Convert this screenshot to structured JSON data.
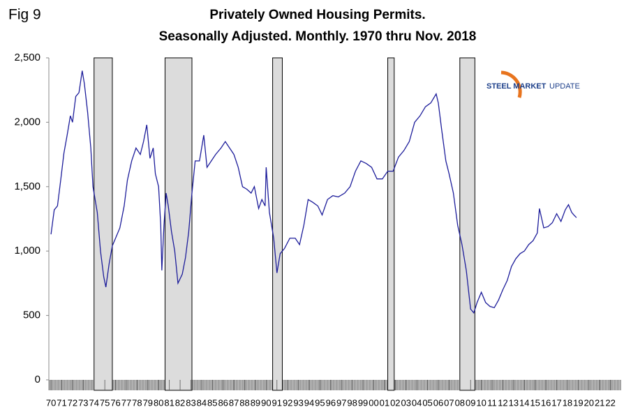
{
  "fig_label": "Fig 9",
  "logo": {
    "bold": "STEEL MARKET",
    "light": "UPDATE"
  },
  "chart_data": {
    "type": "line",
    "title": "Privately Owned Housing Permits.",
    "subtitle": "Seasonally Adjusted. Monthly. 1970 thru Nov. 2018",
    "x": [
      1970.0,
      1970.3,
      1970.6,
      1970.9,
      1971.2,
      1971.5,
      1971.8,
      1972.0,
      1972.3,
      1972.6,
      1972.9,
      1973.1,
      1973.4,
      1973.7,
      1973.9,
      1974.1,
      1974.3,
      1974.6,
      1974.9,
      1975.1,
      1975.4,
      1975.7,
      1976.0,
      1976.4,
      1976.8,
      1977.1,
      1977.5,
      1977.9,
      1978.3,
      1978.6,
      1978.9,
      1979.2,
      1979.5,
      1979.7,
      1980.0,
      1980.2,
      1980.3,
      1980.5,
      1980.7,
      1980.9,
      1981.2,
      1981.5,
      1981.8,
      1982.2,
      1982.5,
      1982.8,
      1983.1,
      1983.4,
      1983.8,
      1984.2,
      1984.5,
      1984.9,
      1985.3,
      1985.8,
      1986.2,
      1986.6,
      1987.0,
      1987.4,
      1987.8,
      1988.2,
      1988.6,
      1988.9,
      1989.3,
      1989.6,
      1989.9,
      1990.0,
      1990.3,
      1990.7,
      1991.0,
      1991.3,
      1991.7,
      1992.2,
      1992.7,
      1993.1,
      1993.5,
      1993.9,
      1994.3,
      1994.8,
      1995.2,
      1995.7,
      1996.2,
      1996.7,
      1997.3,
      1997.8,
      1998.3,
      1998.8,
      1999.3,
      1999.8,
      2000.3,
      2000.8,
      2001.3,
      2001.8,
      2002.3,
      2002.8,
      2003.3,
      2003.8,
      2004.3,
      2004.8,
      2005.3,
      2005.8,
      2006.0,
      2006.3,
      2006.7,
      2007.0,
      2007.4,
      2007.8,
      2008.2,
      2008.6,
      2009.0,
      2009.3,
      2009.6,
      2010.0,
      2010.4,
      2010.8,
      2011.2,
      2011.6,
      2012.0,
      2012.4,
      2012.8,
      2013.2,
      2013.6,
      2014.0,
      2014.4,
      2014.8,
      2015.2,
      2015.4,
      2015.8,
      2016.2,
      2016.6,
      2017.0,
      2017.4,
      2017.8,
      2018.1,
      2018.4,
      2018.6,
      2018.84
    ],
    "series": [
      {
        "color": "#1c1c9a",
        "values": [
          1130,
          1320,
          1350,
          1550,
          1760,
          1900,
          2050,
          2000,
          2200,
          2230,
          2400,
          2300,
          2080,
          1800,
          1500,
          1400,
          1300,
          1000,
          800,
          720,
          900,
          1040,
          1100,
          1180,
          1350,
          1550,
          1700,
          1800,
          1750,
          1850,
          1980,
          1720,
          1800,
          1600,
          1500,
          1200,
          850,
          1200,
          1450,
          1350,
          1150,
          1000,
          750,
          820,
          950,
          1150,
          1450,
          1700,
          1700,
          1900,
          1650,
          1700,
          1750,
          1800,
          1850,
          1800,
          1750,
          1650,
          1500,
          1480,
          1450,
          1500,
          1330,
          1400,
          1350,
          1650,
          1300,
          1100,
          830,
          980,
          1020,
          1100,
          1100,
          1050,
          1200,
          1400,
          1380,
          1350,
          1280,
          1400,
          1430,
          1420,
          1450,
          1500,
          1620,
          1700,
          1680,
          1650,
          1560,
          1560,
          1620,
          1620,
          1730,
          1780,
          1850,
          2000,
          2050,
          2120,
          2150,
          2220,
          2150,
          1950,
          1700,
          1600,
          1450,
          1200,
          1050,
          850,
          550,
          520,
          600,
          680,
          600,
          570,
          560,
          620,
          700,
          770,
          880,
          940,
          980,
          1000,
          1050,
          1080,
          1140,
          1330,
          1180,
          1190,
          1220,
          1290,
          1230,
          1320,
          1360,
          1300,
          1280,
          1260
        ]
      }
    ],
    "shaded_periods": [
      [
        1974.0,
        1975.7
      ],
      [
        1980.6,
        1983.1
      ],
      [
        1990.6,
        1991.5
      ],
      [
        2001.3,
        2001.9
      ],
      [
        2008.0,
        2009.4
      ]
    ],
    "xlim": [
      1969.8,
      2023
    ],
    "xticks": [
      {
        "value": 1970,
        "label": "70"
      },
      {
        "value": 1971,
        "label": "71"
      },
      {
        "value": 1972,
        "label": "72"
      },
      {
        "value": 1973,
        "label": "73"
      },
      {
        "value": 1974,
        "label": "74"
      },
      {
        "value": 1975,
        "label": "75"
      },
      {
        "value": 1976,
        "label": "76"
      },
      {
        "value": 1977,
        "label": "77"
      },
      {
        "value": 1978,
        "label": "78"
      },
      {
        "value": 1979,
        "label": "79"
      },
      {
        "value": 1980,
        "label": "80"
      },
      {
        "value": 1981,
        "label": "81"
      },
      {
        "value": 1982,
        "label": "82"
      },
      {
        "value": 1983,
        "label": "83"
      },
      {
        "value": 1984,
        "label": "84"
      },
      {
        "value": 1985,
        "label": "85"
      },
      {
        "value": 1986,
        "label": "86"
      },
      {
        "value": 1987,
        "label": "87"
      },
      {
        "value": 1988,
        "label": "88"
      },
      {
        "value": 1989,
        "label": "89"
      },
      {
        "value": 1990,
        "label": "90"
      },
      {
        "value": 1991,
        "label": "91"
      },
      {
        "value": 1992,
        "label": "92"
      },
      {
        "value": 1993,
        "label": "93"
      },
      {
        "value": 1994,
        "label": "94"
      },
      {
        "value": 1995,
        "label": "95"
      },
      {
        "value": 1996,
        "label": "96"
      },
      {
        "value": 1997,
        "label": "97"
      },
      {
        "value": 1998,
        "label": "98"
      },
      {
        "value": 1999,
        "label": "99"
      },
      {
        "value": 2000,
        "label": "00"
      },
      {
        "value": 2001,
        "label": "01"
      },
      {
        "value": 2002,
        "label": "02"
      },
      {
        "value": 2003,
        "label": "03"
      },
      {
        "value": 2004,
        "label": "04"
      },
      {
        "value": 2005,
        "label": "05"
      },
      {
        "value": 2006,
        "label": "06"
      },
      {
        "value": 2007,
        "label": "07"
      },
      {
        "value": 2008,
        "label": "08"
      },
      {
        "value": 2009,
        "label": "09"
      },
      {
        "value": 2010,
        "label": "10"
      },
      {
        "value": 2011,
        "label": "11"
      },
      {
        "value": 2012,
        "label": "12"
      },
      {
        "value": 2013,
        "label": "13"
      },
      {
        "value": 2014,
        "label": "14"
      },
      {
        "value": 2015,
        "label": "15"
      },
      {
        "value": 2016,
        "label": "16"
      },
      {
        "value": 2017,
        "label": "17"
      },
      {
        "value": 2018,
        "label": "18"
      },
      {
        "value": 2019,
        "label": "19"
      },
      {
        "value": 2020,
        "label": "20"
      },
      {
        "value": 2021,
        "label": "21"
      },
      {
        "value": 2022,
        "label": "22"
      }
    ],
    "ylim": [
      0,
      2500
    ],
    "yticks": [
      0,
      500,
      {
        "value": 1000,
        "label": "1,000"
      },
      {
        "value": 1500,
        "label": "1,500"
      },
      {
        "value": 2000,
        "label": "2,000"
      },
      {
        "value": 2500,
        "label": "2,500"
      }
    ]
  }
}
